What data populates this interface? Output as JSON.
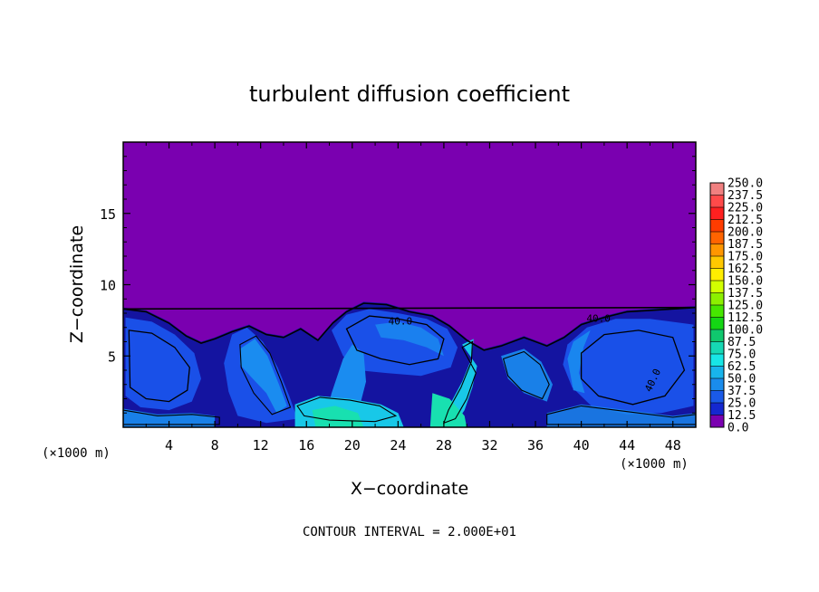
{
  "chart_data": {
    "type": "heatmap",
    "title": "turbulent diffusion coefficient",
    "xlabel": "X−coordinate",
    "ylabel": "Z−coordinate",
    "x_unit_left": "(×1000 m)",
    "x_unit_right": "(×1000 m)",
    "xlim": [
      0,
      50
    ],
    "ylim": [
      0,
      20
    ],
    "x_ticks": [
      "4",
      "8",
      "12",
      "16",
      "20",
      "24",
      "28",
      "32",
      "36",
      "40",
      "44",
      "48"
    ],
    "y_ticks": [
      "5",
      "10",
      "15"
    ],
    "x_tick_values": [
      4,
      8,
      12,
      16,
      20,
      24,
      28,
      32,
      36,
      40,
      44,
      48
    ],
    "y_tick_values": [
      5,
      10,
      15
    ],
    "footer": "CONTOUR INTERVAL = 2.000E+01",
    "contour_labels": [
      "40.0",
      "40.0",
      "40.0"
    ],
    "background_value": 0.0,
    "colorbar": {
      "labels": [
        "250.0",
        "237.5",
        "225.0",
        "212.5",
        "200.0",
        "187.5",
        "175.0",
        "162.5",
        "150.0",
        "137.5",
        "125.0",
        "112.5",
        "100.0",
        "87.5",
        "75.0",
        "62.5",
        "50.0",
        "37.5",
        "25.0",
        "12.5",
        "0.0"
      ],
      "colors": [
        "#f08080",
        "#ff4a4a",
        "#ff2020",
        "#ff3c00",
        "#ff6400",
        "#ff9600",
        "#ffc800",
        "#ffee00",
        "#d2ff00",
        "#8cf000",
        "#46e600",
        "#14d614",
        "#10c86e",
        "#16d8b4",
        "#18e6e6",
        "#18b4ec",
        "#1a8cec",
        "#1a5ae8",
        "#1428d0",
        "#1010a8",
        "#7a00b0"
      ]
    },
    "field_colors": {
      "zero": "#7a00b0",
      "low": "#1414a0",
      "mid": "#1a50e8",
      "mid_high": "#1a8cf0",
      "high": "#18c8e8",
      "peak": "#18e0b0",
      "contour": "#000000"
    }
  }
}
